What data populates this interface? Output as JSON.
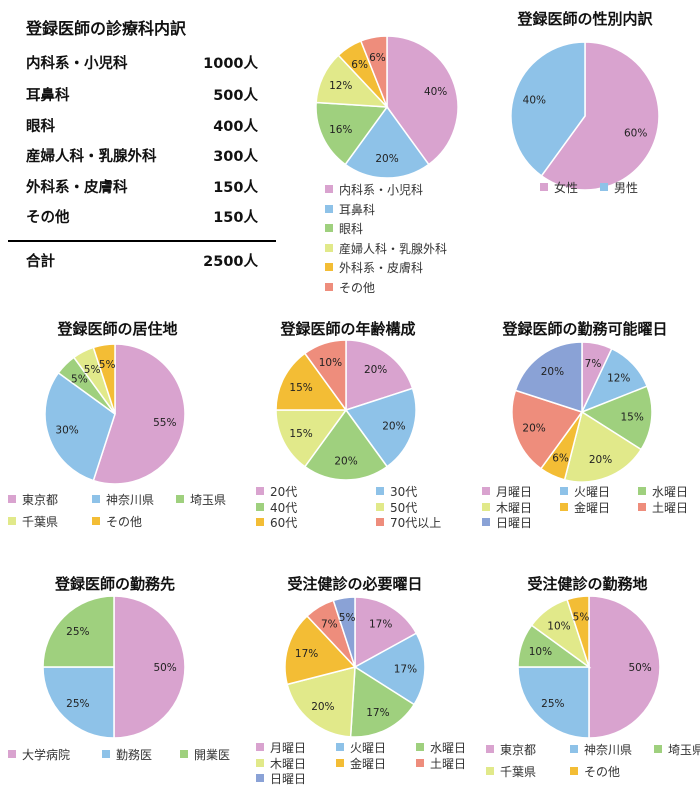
{
  "table": {
    "title": "登録医師の診療科内訳",
    "rows": [
      {
        "label": "内科系・小児科",
        "value": "1000人"
      },
      {
        "label": "耳鼻科",
        "value": "500人"
      },
      {
        "label": "眼科",
        "value": "400人"
      },
      {
        "label": "産婦人科・乳腺外科",
        "value": "300人"
      },
      {
        "label": "外科系・皮膚科",
        "value": "150人"
      },
      {
        "label": "その他",
        "value": "150人"
      }
    ],
    "total": {
      "label": "合計",
      "value": "2500人"
    }
  },
  "chart_data": [
    {
      "type": "pie",
      "title": "",
      "categories": [
        "内科系・小児科",
        "耳鼻科",
        "眼科",
        "産婦人科・乳腺外科",
        "外科系・皮膚科",
        "その他"
      ],
      "values": [
        40,
        20,
        16,
        12,
        6,
        6
      ],
      "labels": [
        "40%",
        "20%",
        "16%",
        "12%",
        "6%",
        "6%"
      ],
      "colors": [
        "#d9a3cf",
        "#8ec2e8",
        "#9fd07e",
        "#e1e98a",
        "#f3bd35",
        "#ee8d7c"
      ]
    },
    {
      "type": "pie",
      "title": "登録医師の性別内訳",
      "categories": [
        "女性",
        "男性"
      ],
      "values": [
        60,
        40
      ],
      "labels": [
        "60%",
        "40%"
      ],
      "colors": [
        "#d9a3cf",
        "#8ec2e8"
      ]
    },
    {
      "type": "pie",
      "title": "登録医師の居住地",
      "categories": [
        "東京都",
        "神奈川県",
        "埼玉県",
        "千葉県",
        "その他"
      ],
      "values": [
        55,
        30,
        5,
        5,
        5
      ],
      "labels": [
        "55%",
        "30%",
        "5%",
        "5%",
        "5%"
      ],
      "colors": [
        "#d9a3cf",
        "#8ec2e8",
        "#9fd07e",
        "#e1e98a",
        "#f3bd35"
      ]
    },
    {
      "type": "pie",
      "title": "登録医師の年齢構成",
      "categories": [
        "20代",
        "30代",
        "40代",
        "50代",
        "60代",
        "70代以上"
      ],
      "values": [
        20,
        20,
        20,
        15,
        15,
        10
      ],
      "labels": [
        "20%",
        "20%",
        "20%",
        "15%",
        "15%",
        "10%"
      ],
      "colors": [
        "#d9a3cf",
        "#8ec2e8",
        "#9fd07e",
        "#e1e98a",
        "#f3bd35",
        "#ee8d7c"
      ]
    },
    {
      "type": "pie",
      "title": "登録医師の勤務可能曜日",
      "categories": [
        "月曜日",
        "火曜日",
        "水曜日",
        "木曜日",
        "金曜日",
        "土曜日",
        "日曜日"
      ],
      "values": [
        7,
        12,
        15,
        20,
        6,
        20,
        20
      ],
      "labels": [
        "7%",
        "12%",
        "15%",
        "20%",
        "6%",
        "20%",
        "20%"
      ],
      "colors": [
        "#d9a3cf",
        "#8ec2e8",
        "#9fd07e",
        "#e1e98a",
        "#f3bd35",
        "#ee8d7c",
        "#8aa2d6"
      ]
    },
    {
      "type": "pie",
      "title": "登録医師の勤務先",
      "categories": [
        "大学病院",
        "勤務医",
        "開業医"
      ],
      "values": [
        50,
        25,
        25
      ],
      "labels": [
        "50%",
        "25%",
        "25%"
      ],
      "colors": [
        "#d9a3cf",
        "#8ec2e8",
        "#9fd07e"
      ]
    },
    {
      "type": "pie",
      "title": "受注健診の必要曜日",
      "categories": [
        "月曜日",
        "火曜日",
        "水曜日",
        "木曜日",
        "金曜日",
        "土曜日",
        "日曜日"
      ],
      "values": [
        17,
        17,
        17,
        20,
        17,
        7,
        5
      ],
      "labels": [
        "17%",
        "17%",
        "17%",
        "20%",
        "17%",
        "7%",
        "5%"
      ],
      "colors": [
        "#d9a3cf",
        "#8ec2e8",
        "#9fd07e",
        "#e1e98a",
        "#f3bd35",
        "#ee8d7c",
        "#8aa2d6"
      ]
    },
    {
      "type": "pie",
      "title": "受注健診の勤務地",
      "categories": [
        "東京都",
        "神奈川県",
        "埼玉県",
        "千葉県",
        "その他"
      ],
      "values": [
        50,
        25,
        10,
        10,
        5
      ],
      "labels": [
        "50%",
        "25%",
        "10%",
        "10%",
        "5%"
      ],
      "colors": [
        "#d9a3cf",
        "#8ec2e8",
        "#9fd07e",
        "#e1e98a",
        "#f3bd35"
      ]
    }
  ]
}
